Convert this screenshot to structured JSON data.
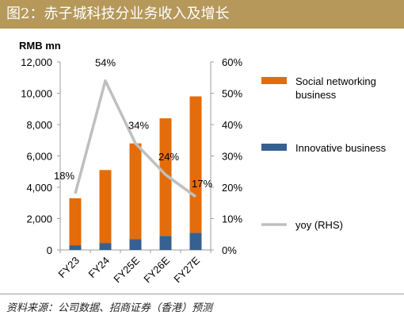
{
  "header": {
    "title": "图2：赤子城科技分业务收入及增长"
  },
  "footer": {
    "source": "资料来源：公司数据、招商证券（香港）预测"
  },
  "colors": {
    "header_bg": "#b5985a",
    "social": "#e46c0a",
    "innovative": "#366092",
    "yoy": "#bfbfbf",
    "axis": "#9e9e9e"
  },
  "chart_data": {
    "type": "bar",
    "stacked": true,
    "y_unit_label": "RMB mn",
    "categories": [
      "FY23",
      "FY24",
      "FY25E",
      "FY26E",
      "FY27E"
    ],
    "ylim": [
      0,
      12000
    ],
    "yticks": [
      "0",
      "2,000",
      "4,000",
      "6,000",
      "8,000",
      "10,000",
      "12,000"
    ],
    "y2lim": [
      0,
      60
    ],
    "y2ticks": [
      "0%",
      "10%",
      "20%",
      "30%",
      "40%",
      "50%",
      "60%"
    ],
    "series": [
      {
        "name": "Innovative business",
        "type": "bar",
        "color": "#366092",
        "values": [
          300,
          450,
          700,
          900,
          1100
        ]
      },
      {
        "name": "Social networking business",
        "type": "bar",
        "color": "#e46c0a",
        "values": [
          3000,
          4650,
          6100,
          7500,
          8700
        ]
      },
      {
        "name": "yoy (RHS)",
        "type": "line",
        "axis": "right",
        "color": "#bfbfbf",
        "values": [
          18,
          54,
          34,
          24,
          17
        ],
        "labels": [
          "18%",
          "54%",
          "34%",
          "24%",
          "17%"
        ]
      }
    ],
    "legend": [
      {
        "label": "Social networking business",
        "color": "#e46c0a",
        "kind": "bar"
      },
      {
        "label": "Innovative business",
        "color": "#366092",
        "kind": "bar"
      },
      {
        "label": "yoy (RHS)",
        "color": "#bfbfbf",
        "kind": "line"
      }
    ],
    "legend_position": "right",
    "grid": false
  }
}
